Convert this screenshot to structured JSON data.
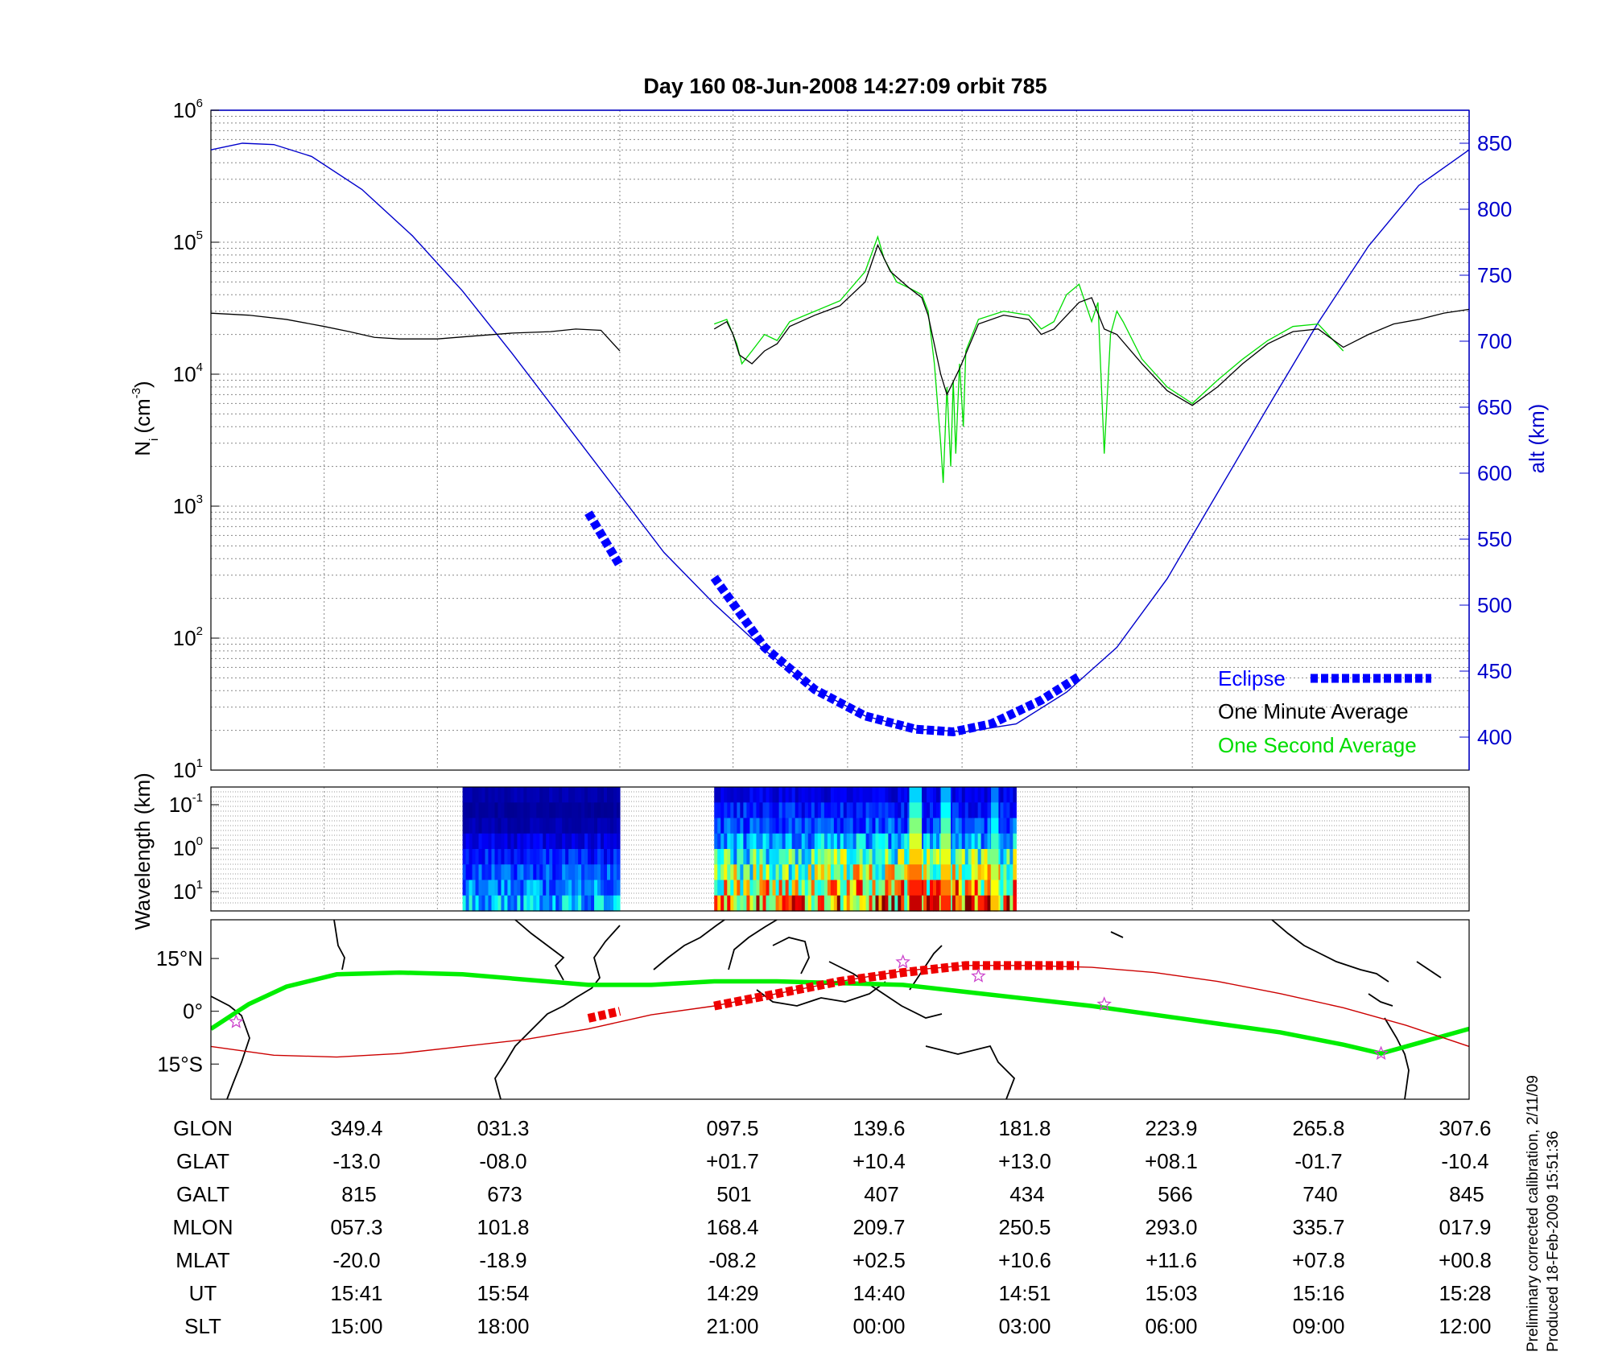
{
  "title": "Day 160  08-Jun-2008 14:27:09   orbit 785",
  "footnote": [
    "Preliminary corrected calibration, 2/11/09",
    "Produced 18-Feb-2009 15:51:36"
  ],
  "colors": {
    "alt": "#0000cc",
    "avg": "#000000",
    "sec": "#00dd00",
    "eclipse": "#0000ff",
    "track": "#cc0000",
    "dip": "#00ee00",
    "star": "#cc44cc"
  },
  "chart_data": [
    {
      "id": "density",
      "type": "line",
      "xlabel": "",
      "ylabel_base": "N",
      "ylabel_sub": "i",
      "ylabel_rest": "(cm",
      "ylabel_sup": "-3",
      "ylabel_close": ")",
      "yscale": "log",
      "ylim_exp": [
        1,
        6
      ],
      "ytick_base": "10",
      "ytick_exp": [
        "1",
        "2",
        "3",
        "4",
        "5",
        "6"
      ],
      "y2label": "alt (km)",
      "y2lim": [
        375,
        875
      ],
      "y2ticks": [
        "400",
        "450",
        "500",
        "550",
        "600",
        "650",
        "700",
        "750",
        "800",
        "850"
      ],
      "legend_position": "bottom-right",
      "legend": {
        "eclipse": "Eclipse",
        "minute": "One Minute Average",
        "second": "One Second Average"
      },
      "series": [
        {
          "role": "altitude",
          "x": [
            0.0,
            0.025,
            0.05,
            0.08,
            0.12,
            0.16,
            0.2,
            0.24,
            0.28,
            0.32,
            0.36,
            0.4,
            0.44,
            0.48,
            0.52,
            0.56,
            0.6,
            0.64,
            0.68,
            0.72,
            0.76,
            0.8,
            0.84,
            0.88,
            0.92,
            0.96,
            1.0
          ],
          "y": [
            845,
            850,
            849,
            840,
            815,
            780,
            738,
            690,
            640,
            590,
            540,
            501,
            466,
            436,
            416,
            406,
            404,
            410,
            434,
            468,
            520,
            585,
            650,
            714,
            772,
            818,
            845
          ]
        },
        {
          "role": "one-minute-average",
          "segments": [
            {
              "x": [
                0.0,
                0.03,
                0.06,
                0.09,
                0.11,
                0.13,
                0.15,
                0.18,
                0.21,
                0.24,
                0.27,
                0.29,
                0.31,
                0.325
              ],
              "y": [
                29000,
                28000,
                26000,
                23000,
                21000,
                19000,
                18500,
                18500,
                19500,
                20500,
                21000,
                22000,
                21500,
                15000
              ]
            },
            {
              "x": [
                0.4,
                0.41,
                0.415,
                0.42,
                0.43,
                0.44,
                0.45,
                0.46,
                0.48,
                0.5,
                0.52,
                0.53,
                0.54,
                0.555,
                0.565,
                0.57,
                0.58,
                0.585,
                0.595,
                0.61,
                0.63,
                0.65,
                0.66,
                0.67,
                0.69,
                0.7,
                0.71,
                0.72,
                0.74,
                0.76,
                0.78,
                0.8,
                0.82,
                0.84,
                0.86,
                0.88,
                0.9,
                0.92,
                0.94,
                0.96,
                0.98,
                1.0
              ],
              "y": [
                22000,
                25000,
                20000,
                14000,
                12000,
                15000,
                17000,
                23000,
                28000,
                33000,
                50000,
                95000,
                60000,
                45000,
                38000,
                28000,
                10000,
                7000,
                11000,
                24000,
                28000,
                26000,
                20000,
                22000,
                35000,
                38000,
                22000,
                20000,
                12000,
                7500,
                5800,
                8000,
                12000,
                17000,
                21000,
                22000,
                16000,
                20000,
                24000,
                26000,
                29000,
                31000
              ]
            }
          ]
        },
        {
          "role": "one-second-average",
          "segments": [
            {
              "x": [
                0.4,
                0.41,
                0.418,
                0.422,
                0.43,
                0.44,
                0.45,
                0.46,
                0.48,
                0.5,
                0.52,
                0.53,
                0.535,
                0.545,
                0.555,
                0.565,
                0.57,
                0.575,
                0.58,
                0.582,
                0.585,
                0.588,
                0.59,
                0.592,
                0.595,
                0.598,
                0.6,
                0.61,
                0.63,
                0.65,
                0.66,
                0.67,
                0.68,
                0.69,
                0.7,
                0.705,
                0.71,
                0.715,
                0.72,
                0.725,
                0.74,
                0.76,
                0.78,
                0.8,
                0.82,
                0.84,
                0.86,
                0.88,
                0.9
              ],
              "y": [
                24000,
                26000,
                17000,
                12000,
                15000,
                20000,
                18000,
                25000,
                30000,
                36000,
                60000,
                110000,
                75000,
                50000,
                45000,
                40000,
                30000,
                12000,
                3000,
                1500,
                8000,
                2000,
                9000,
                2500,
                12000,
                4000,
                15000,
                26000,
                30000,
                28000,
                22000,
                25000,
                40000,
                48000,
                25000,
                35000,
                2500,
                20000,
                30000,
                25000,
                13000,
                8000,
                6000,
                9000,
                13000,
                18000,
                23000,
                24000,
                15000
              ]
            }
          ]
        },
        {
          "role": "eclipse-alt",
          "segments": [
            {
              "x": [
                0.3,
                0.325
              ],
              "y": [
                570,
                530
              ]
            },
            {
              "x": [
                0.4,
                0.44,
                0.48,
                0.52,
                0.56,
                0.59,
                0.62,
                0.66,
                0.69
              ],
              "y": [
                521,
                468,
                436,
                416,
                406,
                404,
                410,
                428,
                446
              ]
            }
          ]
        }
      ]
    },
    {
      "id": "spectrogram",
      "type": "heatmap",
      "ylabel": "Wavelength (km)",
      "ytick_base": "10",
      "ytick_exp": [
        "-1",
        "0",
        "1"
      ],
      "blocks": [
        {
          "x": [
            0.2,
            0.325
          ],
          "bands": [
            0.05,
            0.03,
            0.05,
            0.1,
            0.15,
            0.2,
            0.25,
            0.3
          ]
        },
        {
          "x": [
            0.4,
            0.49
          ],
          "bands": [
            0.1,
            0.15,
            0.2,
            0.3,
            0.4,
            0.5,
            0.6,
            0.7
          ]
        },
        {
          "x": [
            0.49,
            0.64
          ],
          "bands": [
            0.1,
            0.15,
            0.2,
            0.3,
            0.45,
            0.55,
            0.65,
            0.75
          ]
        }
      ],
      "hotspots": [
        {
          "x": 0.555,
          "w": 0.01,
          "v": 0.95
        },
        {
          "x": 0.58,
          "w": 0.008,
          "v": 0.85
        },
        {
          "x": 0.62,
          "w": 0.006,
          "v": 0.7
        }
      ]
    },
    {
      "id": "map",
      "type": "line",
      "ytick_labels": [
        "15°N",
        "0°",
        "15°S"
      ],
      "ytick_values": [
        15,
        0,
        -15
      ],
      "ylim": [
        -25,
        26
      ],
      "series": [
        {
          "role": "dip-equator",
          "x": [
            0.0,
            0.03,
            0.06,
            0.1,
            0.15,
            0.2,
            0.25,
            0.3,
            0.35,
            0.4,
            0.45,
            0.5,
            0.55,
            0.6,
            0.65,
            0.7,
            0.75,
            0.8,
            0.85,
            0.9,
            0.93,
            0.96,
            1.0
          ],
          "y": [
            -5,
            2,
            7,
            10.5,
            11,
            10.5,
            9,
            7.5,
            7.5,
            8.5,
            8.5,
            8,
            7.5,
            5.5,
            3.5,
            1.5,
            -1,
            -3.5,
            -6,
            -9.5,
            -12,
            -9,
            -5
          ]
        },
        {
          "role": "ground-track",
          "x": [
            0.0,
            0.05,
            0.1,
            0.15,
            0.2,
            0.25,
            0.3,
            0.35,
            0.4,
            0.45,
            0.5,
            0.55,
            0.6,
            0.65,
            0.7,
            0.75,
            0.8,
            0.85,
            0.9,
            0.95,
            1.0
          ],
          "y": [
            -10,
            -12.5,
            -13,
            -12,
            -10,
            -8,
            -5,
            -1,
            1.5,
            5,
            8.5,
            11.5,
            13,
            13,
            12.5,
            11,
            8.5,
            5,
            1,
            -4,
            -10
          ]
        },
        {
          "role": "eclipse-track",
          "segments": [
            {
              "x": [
                0.3,
                0.325
              ],
              "y": [
                -2,
                0
              ]
            },
            {
              "x": [
                0.4,
                0.5,
                0.55,
                0.6,
                0.69
              ],
              "y": [
                1.5,
                8.5,
                11,
                13,
                13
              ]
            }
          ]
        },
        {
          "role": "stars",
          "x": [
            0.02,
            0.55,
            0.61,
            0.71,
            0.93
          ],
          "y": [
            -3,
            14,
            10,
            2,
            -12
          ]
        }
      ]
    }
  ],
  "table": {
    "rows": [
      {
        "label": "GLON",
        "values": [
          "349.4",
          "031.3",
          "097.5",
          "139.6",
          "181.8",
          "223.9",
          "265.8",
          "307.6"
        ]
      },
      {
        "label": "GLAT",
        "values": [
          "-13.0",
          "-08.0",
          "+01.7",
          "+10.4",
          "+13.0",
          "+08.1",
          "-01.7",
          "-10.4"
        ]
      },
      {
        "label": "GALT",
        "values": [
          "815",
          "673",
          "501",
          "407",
          "434",
          "566",
          "740",
          "845"
        ]
      },
      {
        "label": "MLON",
        "values": [
          "057.3",
          "101.8",
          "168.4",
          "209.7",
          "250.5",
          "293.0",
          "335.7",
          "017.9"
        ]
      },
      {
        "label": "MLAT",
        "values": [
          "-20.0",
          "-18.9",
          "-08.2",
          "+02.5",
          "+10.6",
          "+11.6",
          "+07.8",
          "+00.8"
        ]
      },
      {
        "label": "UT",
        "values": [
          "15:41",
          "15:54",
          "14:29",
          "14:40",
          "14:51",
          "15:03",
          "15:16",
          "15:28"
        ]
      },
      {
        "label": "SLT",
        "values": [
          "15:00",
          "18:00",
          "21:00",
          "00:00",
          "03:00",
          "06:00",
          "09:00",
          "12:00"
        ]
      }
    ]
  }
}
